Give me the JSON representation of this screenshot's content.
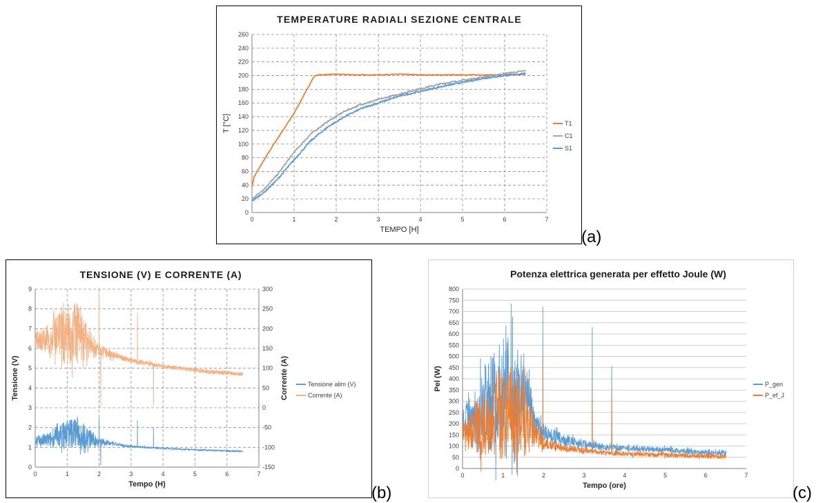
{
  "labels": {
    "a": "(a)",
    "b": "(b)",
    "c": "(c)"
  },
  "colors": {
    "orange": "#ed7d31",
    "gray": "#a5a5a5",
    "blue": "#5b9bd5",
    "peach": "#f4b183"
  },
  "chart_data": [
    {
      "id": "a",
      "type": "line",
      "title": "TEMPERATURE RADIALI SEZIONE CENTRALE",
      "xlabel": "TEMPO [H]",
      "ylabel": "T [°C]",
      "xlim": [
        0,
        7
      ],
      "ylim": [
        0,
        260
      ],
      "x_ticks": [
        "0",
        "1",
        "2",
        "3",
        "4",
        "5",
        "6",
        "7"
      ],
      "y_ticks": [
        "0",
        "20",
        "40",
        "60",
        "80",
        "100",
        "120",
        "140",
        "160",
        "180",
        "200",
        "220",
        "240",
        "260"
      ],
      "grid": "dashed",
      "legend_position": "right",
      "series": [
        {
          "name": "T1",
          "color": "#ed7d31",
          "noise": 0.5,
          "x": [
            0,
            0.05,
            0.2,
            0.5,
            1.0,
            1.45,
            1.5,
            1.6,
            2.0,
            2.5,
            3.0,
            3.5,
            4.0,
            5.0,
            6.0,
            6.5
          ],
          "y": [
            38,
            52,
            68,
            98,
            145,
            196,
            200,
            201,
            202,
            201,
            201,
            202,
            201,
            201,
            201,
            202
          ]
        },
        {
          "name": "C1",
          "color": "#a5a5a5",
          "noise": 1.2,
          "x": [
            0,
            0.3,
            0.6,
            1.0,
            1.4,
            1.8,
            2.2,
            2.6,
            3.0,
            3.5,
            4.0,
            4.5,
            5.0,
            5.5,
            6.0,
            6.5
          ],
          "y": [
            20,
            35,
            55,
            88,
            115,
            133,
            148,
            158,
            165,
            173,
            181,
            188,
            193,
            198,
            203,
            207
          ]
        },
        {
          "name": "S1",
          "color": "#5b9bd5",
          "noise": 1.2,
          "x": [
            0,
            0.3,
            0.6,
            1.0,
            1.4,
            1.8,
            2.2,
            2.6,
            3.0,
            3.5,
            4.0,
            4.5,
            5.0,
            5.5,
            6.0,
            6.5
          ],
          "y": [
            17,
            30,
            48,
            77,
            105,
            125,
            140,
            152,
            160,
            170,
            177,
            184,
            190,
            196,
            200,
            203
          ]
        }
      ]
    },
    {
      "id": "b",
      "type": "line",
      "title": "TENSIONE (V) E CORRENTE (A)",
      "xlabel": "Tempo (H)",
      "ylabel": "Tensione (V)",
      "y2label": "Corrente (A)",
      "xlim": [
        0,
        7
      ],
      "ylim": [
        0,
        9
      ],
      "y2lim": [
        -150,
        300
      ],
      "x_ticks": [
        "0",
        "1",
        "2",
        "3",
        "4",
        "5",
        "6",
        "7"
      ],
      "y_ticks": [
        "0",
        "1",
        "2",
        "3",
        "4",
        "5",
        "6",
        "7",
        "8",
        "9"
      ],
      "y2_ticks": [
        "-150",
        "-100",
        "-50",
        "0",
        "50",
        "100",
        "150",
        "200",
        "250",
        "300"
      ],
      "grid": "dashed",
      "legend_position": "right",
      "series": [
        {
          "name": "Tensione alim (V)",
          "color": "#5b9bd5",
          "axis": "left",
          "x": [
            0,
            0.5,
            1.0,
            1.3,
            1.6,
            2.0,
            2.5,
            3.0,
            4.0,
            5.0,
            6.0,
            6.5
          ],
          "y": [
            1.3,
            1.4,
            1.7,
            1.8,
            1.5,
            1.3,
            1.15,
            1.05,
            0.95,
            0.88,
            0.82,
            0.8
          ],
          "amp": [
            0.25,
            0.4,
            0.75,
            0.8,
            0.6,
            0.2,
            0.08,
            0.05,
            0.04,
            0.04,
            0.04,
            0.04
          ],
          "spikes": [
            {
              "x": 2.0,
              "y": 2.5
            },
            {
              "x": 2.05,
              "y": 0.1
            },
            {
              "x": 3.2,
              "y": 2.35
            },
            {
              "x": 3.7,
              "y": 2.0
            }
          ]
        },
        {
          "name": "Corrente (A)",
          "color": "#f4b183",
          "axis": "right",
          "x": [
            0,
            0.5,
            1.0,
            1.3,
            1.6,
            2.0,
            2.5,
            3.0,
            4.0,
            5.0,
            6.0,
            6.5
          ],
          "y": [
            170,
            175,
            185,
            190,
            165,
            145,
            132,
            120,
            105,
            95,
            88,
            85
          ],
          "amp": [
            20,
            40,
            75,
            80,
            50,
            15,
            8,
            6,
            5,
            5,
            5,
            5
          ],
          "spikes": [
            {
              "x": 2.0,
              "y": 290
            },
            {
              "x": 2.05,
              "y": 0
            },
            {
              "x": 3.2,
              "y": 240
            },
            {
              "x": 3.7,
              "y": 5
            }
          ]
        }
      ]
    },
    {
      "id": "c",
      "type": "line",
      "title": "Potenza elettrica generata per effetto Joule (W)",
      "xlabel": "Tempo (ore)",
      "ylabel": "Pel (W)",
      "xlim": [
        0,
        7
      ],
      "ylim": [
        0,
        800
      ],
      "x_ticks": [
        "0",
        "1",
        "2",
        "3",
        "4",
        "5",
        "6",
        "7"
      ],
      "y_ticks": [
        "0",
        "50",
        "100",
        "150",
        "200",
        "250",
        "300",
        "350",
        "400",
        "450",
        "500",
        "550",
        "600",
        "650",
        "700",
        "750",
        "800"
      ],
      "grid": "solid-horizontal",
      "legend_position": "right",
      "series": [
        {
          "name": "P_gen",
          "color": "#5b9bd5",
          "x": [
            0,
            0.3,
            0.6,
            1.0,
            1.3,
            1.6,
            1.8,
            2.0,
            2.5,
            3.0,
            3.5,
            4.0,
            5.0,
            6.0,
            6.5
          ],
          "y": [
            200,
            230,
            280,
            330,
            330,
            280,
            200,
            160,
            125,
            110,
            95,
            90,
            82,
            72,
            70
          ],
          "amp": [
            60,
            120,
            200,
            260,
            260,
            180,
            60,
            40,
            25,
            20,
            15,
            12,
            12,
            12,
            12
          ],
          "spikes": [
            {
              "x": 1.98,
              "y": 720
            },
            {
              "x": 3.2,
              "y": 630
            },
            {
              "x": 3.68,
              "y": 455
            }
          ]
        },
        {
          "name": "P_ef_J",
          "color": "#ed7d31",
          "x": [
            0,
            0.3,
            0.6,
            1.0,
            1.3,
            1.6,
            1.8,
            2.0,
            2.5,
            3.0,
            3.5,
            4.0,
            5.0,
            6.0,
            6.5
          ],
          "y": [
            160,
            180,
            210,
            250,
            250,
            200,
            150,
            110,
            90,
            80,
            70,
            65,
            60,
            55,
            52
          ],
          "amp": [
            50,
            100,
            160,
            210,
            210,
            140,
            50,
            25,
            15,
            12,
            10,
            10,
            10,
            10,
            10
          ],
          "spikes": [
            {
              "x": 1.98,
              "y": 500
            },
            {
              "x": 3.2,
              "y": 330
            },
            {
              "x": 3.68,
              "y": 330
            }
          ]
        }
      ]
    }
  ]
}
